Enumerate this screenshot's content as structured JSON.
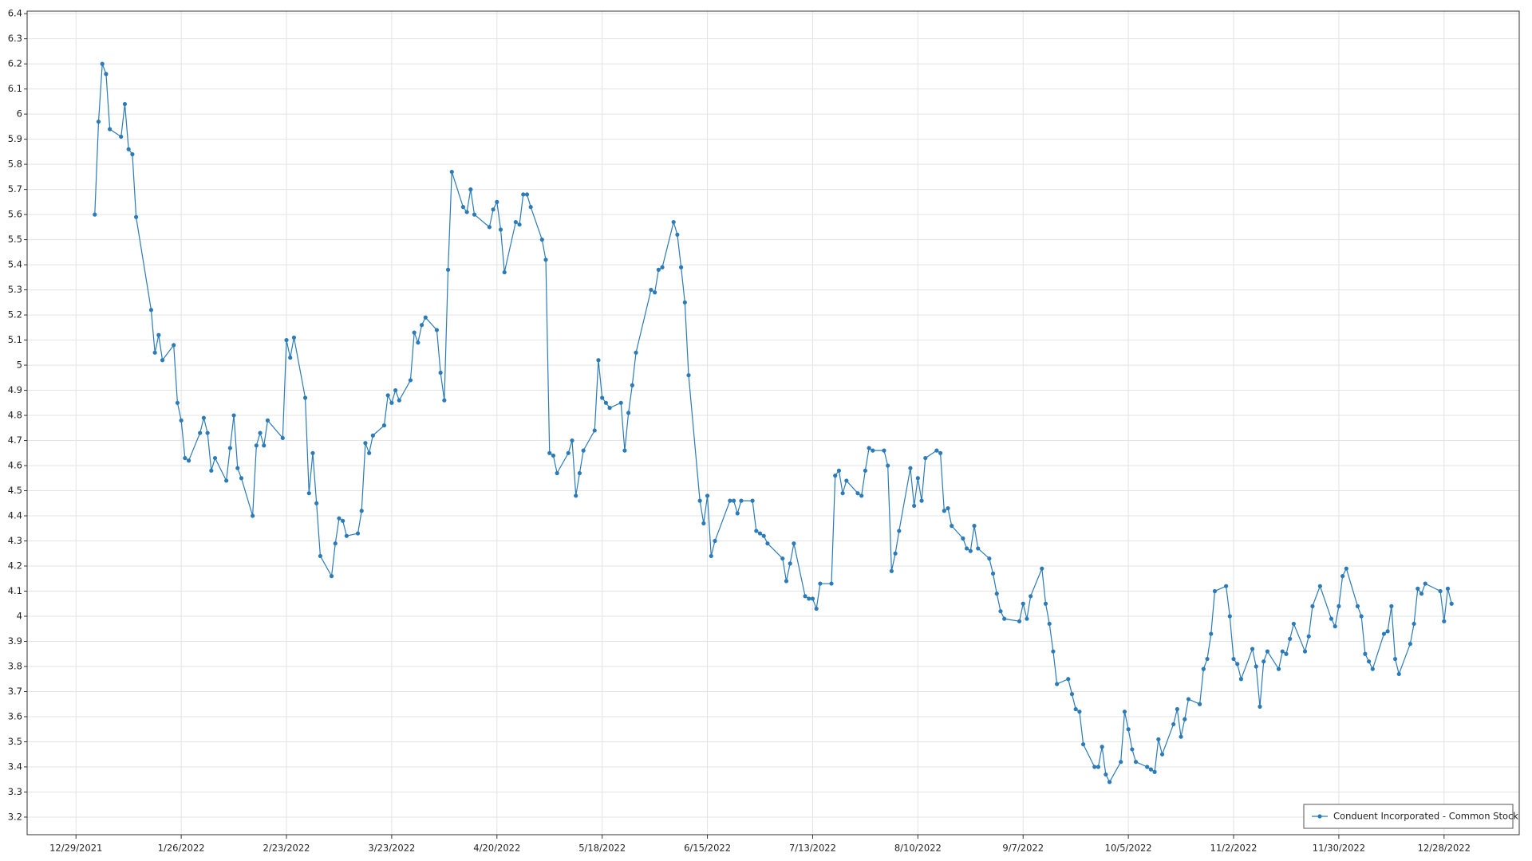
{
  "chart_data": {
    "type": "line",
    "grid": true,
    "legend": "bottom-right",
    "markers": true,
    "xlim": [
      "12/16/2021",
      "1/17/2023"
    ],
    "ylim": [
      3.13,
      6.41
    ],
    "xticks": [
      "12/29/2021",
      "1/26/2022",
      "2/23/2022",
      "3/23/2022",
      "4/20/2022",
      "5/18/2022",
      "6/15/2022",
      "7/13/2022",
      "8/10/2022",
      "9/7/2022",
      "10/5/2022",
      "11/2/2022",
      "11/30/2022",
      "12/28/2022"
    ],
    "yticks": [
      3.2,
      3.3,
      3.4,
      3.5,
      3.6,
      3.7,
      3.8,
      3.9,
      4,
      4.1,
      4.2,
      4.3,
      4.4,
      4.5,
      4.6,
      4.7,
      4.8,
      4.9,
      5,
      5.1,
      5.2,
      5.3,
      5.4,
      5.5,
      5.6,
      5.7,
      5.8,
      5.9,
      6,
      6.1,
      6.2,
      6.3,
      6.4
    ],
    "x": [
      "1/3/2022",
      "1/4/2022",
      "1/5/2022",
      "1/6/2022",
      "1/7/2022",
      "1/10/2022",
      "1/11/2022",
      "1/12/2022",
      "1/13/2022",
      "1/14/2022",
      "1/18/2022",
      "1/19/2022",
      "1/20/2022",
      "1/21/2022",
      "1/24/2022",
      "1/25/2022",
      "1/26/2022",
      "1/27/2022",
      "1/28/2022",
      "1/31/2022",
      "2/1/2022",
      "2/2/2022",
      "2/3/2022",
      "2/4/2022",
      "2/7/2022",
      "2/8/2022",
      "2/9/2022",
      "2/10/2022",
      "2/11/2022",
      "2/14/2022",
      "2/15/2022",
      "2/16/2022",
      "2/17/2022",
      "2/18/2022",
      "2/22/2022",
      "2/23/2022",
      "2/24/2022",
      "2/25/2022",
      "2/28/2022",
      "3/1/2022",
      "3/2/2022",
      "3/3/2022",
      "3/4/2022",
      "3/7/2022",
      "3/8/2022",
      "3/9/2022",
      "3/10/2022",
      "3/11/2022",
      "3/14/2022",
      "3/15/2022",
      "3/16/2022",
      "3/17/2022",
      "3/18/2022",
      "3/21/2022",
      "3/22/2022",
      "3/23/2022",
      "3/24/2022",
      "3/25/2022",
      "3/28/2022",
      "3/29/2022",
      "3/30/2022",
      "3/31/2022",
      "4/1/2022",
      "4/4/2022",
      "4/5/2022",
      "4/6/2022",
      "4/7/2022",
      "4/8/2022",
      "4/11/2022",
      "4/12/2022",
      "4/13/2022",
      "4/14/2022",
      "4/18/2022",
      "4/19/2022",
      "4/20/2022",
      "4/21/2022",
      "4/22/2022",
      "4/25/2022",
      "4/26/2022",
      "4/27/2022",
      "4/28/2022",
      "4/29/2022",
      "5/2/2022",
      "5/3/2022",
      "5/4/2022",
      "5/5/2022",
      "5/6/2022",
      "5/9/2022",
      "5/10/2022",
      "5/11/2022",
      "5/12/2022",
      "5/13/2022",
      "5/16/2022",
      "5/17/2022",
      "5/18/2022",
      "5/19/2022",
      "5/20/2022",
      "5/23/2022",
      "5/24/2022",
      "5/25/2022",
      "5/26/2022",
      "5/27/2022",
      "5/31/2022",
      "6/1/2022",
      "6/2/2022",
      "6/3/2022",
      "6/6/2022",
      "6/7/2022",
      "6/8/2022",
      "6/9/2022",
      "6/10/2022",
      "6/13/2022",
      "6/14/2022",
      "6/15/2022",
      "6/16/2022",
      "6/17/2022",
      "6/21/2022",
      "6/22/2022",
      "6/23/2022",
      "6/24/2022",
      "6/27/2022",
      "6/28/2022",
      "6/29/2022",
      "6/30/2022",
      "7/1/2022",
      "7/5/2022",
      "7/6/2022",
      "7/7/2022",
      "7/8/2022",
      "7/11/2022",
      "7/12/2022",
      "7/13/2022",
      "7/14/2022",
      "7/15/2022",
      "7/18/2022",
      "7/19/2022",
      "7/20/2022",
      "7/21/2022",
      "7/22/2022",
      "7/25/2022",
      "7/26/2022",
      "7/27/2022",
      "7/28/2022",
      "7/29/2022",
      "8/1/2022",
      "8/2/2022",
      "8/3/2022",
      "8/4/2022",
      "8/5/2022",
      "8/8/2022",
      "8/9/2022",
      "8/10/2022",
      "8/11/2022",
      "8/12/2022",
      "8/15/2022",
      "8/16/2022",
      "8/17/2022",
      "8/18/2022",
      "8/19/2022",
      "8/22/2022",
      "8/23/2022",
      "8/24/2022",
      "8/25/2022",
      "8/26/2022",
      "8/29/2022",
      "8/30/2022",
      "8/31/2022",
      "9/1/2022",
      "9/2/2022",
      "9/6/2022",
      "9/7/2022",
      "9/8/2022",
      "9/9/2022",
      "9/12/2022",
      "9/13/2022",
      "9/14/2022",
      "9/15/2022",
      "9/16/2022",
      "9/19/2022",
      "9/20/2022",
      "9/21/2022",
      "9/22/2022",
      "9/23/2022",
      "9/26/2022",
      "9/27/2022",
      "9/28/2022",
      "9/29/2022",
      "9/30/2022",
      "10/3/2022",
      "10/4/2022",
      "10/5/2022",
      "10/6/2022",
      "10/7/2022",
      "10/10/2022",
      "10/11/2022",
      "10/12/2022",
      "10/13/2022",
      "10/14/2022",
      "10/17/2022",
      "10/18/2022",
      "10/19/2022",
      "10/20/2022",
      "10/21/2022",
      "10/24/2022",
      "10/25/2022",
      "10/26/2022",
      "10/27/2022",
      "10/28/2022",
      "10/31/2022",
      "11/1/2022",
      "11/2/2022",
      "11/3/2022",
      "11/4/2022",
      "11/7/2022",
      "11/8/2022",
      "11/9/2022",
      "11/10/2022",
      "11/11/2022",
      "11/14/2022",
      "11/15/2022",
      "11/16/2022",
      "11/17/2022",
      "11/18/2022",
      "11/21/2022",
      "11/22/2022",
      "11/23/2022",
      "11/25/2022",
      "11/28/2022",
      "11/29/2022",
      "11/30/2022",
      "12/1/2022",
      "12/2/2022",
      "12/5/2022",
      "12/6/2022",
      "12/7/2022",
      "12/8/2022",
      "12/9/2022",
      "12/12/2022",
      "12/13/2022",
      "12/14/2022",
      "12/15/2022",
      "12/16/2022",
      "12/19/2022",
      "12/20/2022",
      "12/21/2022",
      "12/22/2022",
      "12/23/2022",
      "12/27/2022",
      "12/28/2022",
      "12/29/2022",
      "12/30/2022"
    ],
    "series": [
      {
        "name": "Conduent Incorporated - Common Stock",
        "color": "#2b7bb9",
        "values": [
          5.6,
          5.97,
          6.2,
          6.16,
          5.94,
          5.91,
          6.04,
          5.86,
          5.84,
          5.59,
          5.22,
          5.05,
          5.12,
          5.02,
          5.08,
          4.85,
          4.78,
          4.63,
          4.62,
          4.73,
          4.79,
          4.73,
          4.58,
          4.63,
          4.54,
          4.67,
          4.8,
          4.59,
          4.55,
          4.4,
          4.68,
          4.73,
          4.68,
          4.78,
          4.71,
          5.1,
          5.03,
          5.11,
          4.87,
          4.49,
          4.65,
          4.45,
          4.24,
          4.16,
          4.29,
          4.39,
          4.38,
          4.32,
          4.33,
          4.42,
          4.69,
          4.65,
          4.72,
          4.76,
          4.88,
          4.85,
          4.9,
          4.86,
          4.94,
          5.13,
          5.09,
          5.16,
          5.19,
          5.14,
          4.97,
          4.86,
          5.38,
          5.77,
          5.63,
          5.61,
          5.7,
          5.6,
          5.55,
          5.62,
          5.65,
          5.54,
          5.37,
          5.57,
          5.56,
          5.68,
          5.68,
          5.63,
          5.5,
          5.42,
          4.65,
          4.64,
          4.57,
          4.65,
          4.7,
          4.48,
          4.57,
          4.66,
          4.74,
          5.02,
          4.87,
          4.85,
          4.83,
          4.85,
          4.66,
          4.81,
          4.92,
          5.05,
          5.3,
          5.29,
          5.38,
          5.39,
          5.57,
          5.52,
          5.39,
          5.25,
          4.96,
          4.46,
          4.37,
          4.48,
          4.24,
          4.3,
          4.46,
          4.46,
          4.41,
          4.46,
          4.46,
          4.34,
          4.33,
          4.32,
          4.29,
          4.23,
          4.14,
          4.21,
          4.29,
          4.08,
          4.07,
          4.07,
          4.03,
          4.13,
          4.13,
          4.56,
          4.58,
          4.49,
          4.54,
          4.49,
          4.48,
          4.58,
          4.67,
          4.66,
          4.66,
          4.6,
          4.18,
          4.25,
          4.34,
          4.59,
          4.44,
          4.55,
          4.46,
          4.63,
          4.66,
          4.65,
          4.42,
          4.43,
          4.36,
          4.31,
          4.27,
          4.26,
          4.36,
          4.27,
          4.23,
          4.17,
          4.09,
          4.02,
          3.99,
          3.98,
          4.05,
          3.99,
          4.08,
          4.19,
          4.05,
          3.97,
          3.86,
          3.73,
          3.75,
          3.69,
          3.63,
          3.62,
          3.49,
          3.4,
          3.4,
          3.48,
          3.37,
          3.34,
          3.42,
          3.62,
          3.55,
          3.47,
          3.42,
          3.4,
          3.39,
          3.38,
          3.51,
          3.45,
          3.57,
          3.63,
          3.52,
          3.59,
          3.67,
          3.65,
          3.79,
          3.83,
          3.93,
          4.1,
          4.12,
          4.0,
          3.83,
          3.81,
          3.75,
          3.87,
          3.8,
          3.64,
          3.82,
          3.86,
          3.79,
          3.86,
          3.85,
          3.91,
          3.97,
          3.86,
          3.92,
          4.04,
          4.12,
          3.99,
          3.96,
          4.04,
          4.16,
          4.19,
          4.04,
          4.0,
          3.85,
          3.82,
          3.79,
          3.93,
          3.94,
          4.04,
          3.83,
          3.77,
          3.89,
          3.97,
          4.11,
          4.09,
          4.13,
          4.1,
          3.98,
          4.11,
          4.05
        ]
      }
    ]
  }
}
